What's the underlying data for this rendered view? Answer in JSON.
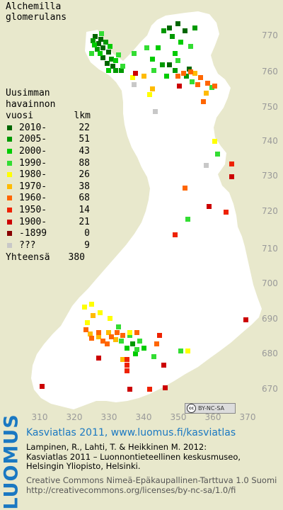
{
  "species": [
    "Alchemilla",
    "glomerulans"
  ],
  "legend": {
    "heading": [
      "Uusimman",
      "havainnon"
    ],
    "col_left": "vuosi",
    "col_right": "lkm",
    "items": [
      {
        "label": "2010-",
        "count": "22",
        "color": "#006600"
      },
      {
        "label": "2005-",
        "count": "51",
        "color": "#009900"
      },
      {
        "label": "2000-",
        "count": "43",
        "color": "#00cc00"
      },
      {
        "label": "1990-",
        "count": "88",
        "color": "#33dd33"
      },
      {
        "label": "1980-",
        "count": "26",
        "color": "#ffff00"
      },
      {
        "label": "1970-",
        "count": "38",
        "color": "#ffbb00"
      },
      {
        "label": "1960-",
        "count": "68",
        "color": "#ff6600"
      },
      {
        "label": "1950-",
        "count": "14",
        "color": "#ee2200"
      },
      {
        "label": "1900-",
        "count": "21",
        "color": "#cc0000"
      },
      {
        "label": "-1899",
        "count": "0",
        "color": "#880000"
      },
      {
        "label": "???",
        "count": "9",
        "color": "#c8c8c8"
      }
    ],
    "total_label": "Yhteensä",
    "total_count": "380"
  },
  "axes": {
    "x_ticks": [
      "310",
      "320",
      "330",
      "340",
      "350",
      "360",
      "370"
    ],
    "y_ticks": [
      "770",
      "760",
      "750",
      "740",
      "730",
      "720",
      "710",
      "700",
      "690",
      "680",
      "670"
    ]
  },
  "license_badge": {
    "symbol": "cc",
    "text": "BY-NC-SA"
  },
  "logo": "LUOMUS",
  "footer": {
    "site": "Kasviatlas 2011, www.luomus.fi/kasviatlas",
    "reference": [
      "Lampinen, R., Lahti, T. & Heikkinen M. 2012:",
      "Kasviatlas 2011 – Luonnontieteellinen keskusmuseo,",
      "Helsingin Yliopisto, Helsinki."
    ],
    "license": [
      "Creative Commons Nimeä-Epäkaupallinen-Tarttuva 1.0 Suomi",
      "http://creativecommons.org/licenses/by-nc-sa/1.0/fi"
    ]
  },
  "map_data": {
    "colors": {
      "land": "#ffffff",
      "background": "#e8e8cc",
      "ticks": "#9a9a9a"
    },
    "records": [
      [
        "#006600",
        131,
        48
      ],
      [
        "#006600",
        139,
        52
      ],
      [
        "#006600",
        136,
        58
      ],
      [
        "#006600",
        142,
        64
      ],
      [
        "#006600",
        150,
        70
      ],
      [
        "#006600",
        142,
        78
      ],
      [
        "#006600",
        148,
        86
      ],
      [
        "#006600",
        156,
        90
      ],
      [
        "#006600",
        248,
        30
      ],
      [
        "#006600",
        258,
        40
      ],
      [
        "#006600",
        236,
        36
      ],
      [
        "#006600",
        236,
        88
      ],
      [
        "#006600",
        264,
        94
      ],
      [
        "#009900",
        128,
        54
      ],
      [
        "#009900",
        134,
        66
      ],
      [
        "#009900",
        146,
        56
      ],
      [
        "#009900",
        154,
        80
      ],
      [
        "#009900",
        160,
        96
      ],
      [
        "#009900",
        240,
        48
      ],
      [
        "#009900",
        228,
        40
      ],
      [
        "#009900",
        226,
        88
      ],
      [
        "#009900",
        244,
        96
      ],
      [
        "#009900",
        272,
        36
      ],
      [
        "#009900",
        260,
        104
      ],
      [
        "#009900",
        168,
        96
      ],
      [
        "#009900",
        184,
        482
      ],
      [
        "#00cc00",
        130,
        60
      ],
      [
        "#00cc00",
        138,
        72
      ],
      [
        "#00cc00",
        152,
        62
      ],
      [
        "#00cc00",
        160,
        82
      ],
      [
        "#00cc00",
        150,
        96
      ],
      [
        "#00cc00",
        212,
        80
      ],
      [
        "#00cc00",
        220,
        64
      ],
      [
        "#00cc00",
        244,
        72
      ],
      [
        "#00cc00",
        252,
        56
      ],
      [
        "#00cc00",
        232,
        104
      ],
      [
        "#00cc00",
        176,
        488
      ],
      [
        "#00cc00",
        188,
        496
      ],
      [
        "#00cc00",
        200,
        488
      ],
      [
        "#33dd33",
        140,
        44
      ],
      [
        "#33dd33",
        126,
        72
      ],
      [
        "#33dd33",
        164,
        74
      ],
      [
        "#33dd33",
        170,
        90
      ],
      [
        "#33dd33",
        186,
        72
      ],
      [
        "#33dd33",
        204,
        64
      ],
      [
        "#33dd33",
        214,
        96
      ],
      [
        "#33dd33",
        248,
        82
      ],
      [
        "#33dd33",
        266,
        62
      ],
      [
        "#33dd33",
        268,
        112
      ],
      [
        "#33dd33",
        296,
        120
      ],
      [
        "#33dd33",
        304,
        214
      ],
      [
        "#33dd33",
        262,
        306
      ],
      [
        "#33dd33",
        168,
        478
      ],
      [
        "#33dd33",
        180,
        470
      ],
      [
        "#33dd33",
        190,
        490
      ],
      [
        "#33dd33",
        194,
        478
      ],
      [
        "#33dd33",
        164,
        458
      ],
      [
        "#33dd33",
        214,
        500
      ],
      [
        "#33dd33",
        252,
        492
      ],
      [
        "#ffff00",
        184,
        106
      ],
      [
        "#ffff00",
        208,
        130
      ],
      [
        "#ffff00",
        300,
        196
      ],
      [
        "#ffff00",
        116,
        430
      ],
      [
        "#ffff00",
        126,
        426
      ],
      [
        "#ffff00",
        138,
        438
      ],
      [
        "#ffff00",
        152,
        446
      ],
      [
        "#ffff00",
        120,
        452
      ],
      [
        "#ffff00",
        180,
        466
      ],
      [
        "#ffff00",
        262,
        492
      ],
      [
        "#ffbb00",
        200,
        104
      ],
      [
        "#ffbb00",
        212,
        122
      ],
      [
        "#ffbb00",
        272,
        100
      ],
      [
        "#ffbb00",
        288,
        128
      ],
      [
        "#ffbb00",
        124,
        468
      ],
      [
        "#ffbb00",
        136,
        472
      ],
      [
        "#ffbb00",
        150,
        466
      ],
      [
        "#ffbb00",
        160,
        476
      ],
      [
        "#ffbb00",
        170,
        504
      ],
      [
        "#ffbb00",
        128,
        442
      ],
      [
        "#ff6600",
        248,
        104
      ],
      [
        "#ff6600",
        256,
        100
      ],
      [
        "#ff6600",
        266,
        98
      ],
      [
        "#ff6600",
        280,
        106
      ],
      [
        "#ff6600",
        276,
        116
      ],
      [
        "#ff6600",
        290,
        114
      ],
      [
        "#ff6600",
        300,
        118
      ],
      [
        "#ff6600",
        284,
        140
      ],
      [
        "#ff6600",
        118,
        462
      ],
      [
        "#ff6600",
        126,
        474
      ],
      [
        "#ff6600",
        136,
        466
      ],
      [
        "#ff6600",
        142,
        478
      ],
      [
        "#ff6600",
        154,
        472
      ],
      [
        "#ff6600",
        162,
        466
      ],
      [
        "#ff6600",
        170,
        470
      ],
      [
        "#ff6600",
        148,
        482
      ],
      [
        "#ff6600",
        190,
        466
      ],
      [
        "#ff6600",
        218,
        482
      ],
      [
        "#ff6600",
        258,
        262
      ],
      [
        "#ee2200",
        176,
        504
      ],
      [
        "#ee2200",
        176,
        512
      ],
      [
        "#ee2200",
        176,
        520
      ],
      [
        "#ee2200",
        222,
        470
      ],
      [
        "#ee2200",
        208,
        546
      ],
      [
        "#ee2200",
        324,
        228
      ],
      [
        "#ee2200",
        316,
        296
      ],
      [
        "#ee2200",
        244,
        328
      ],
      [
        "#cc0000",
        188,
        100
      ],
      [
        "#cc0000",
        250,
        118
      ],
      [
        "#cc0000",
        324,
        246
      ],
      [
        "#cc0000",
        292,
        288
      ],
      [
        "#cc0000",
        230,
        544
      ],
      [
        "#cc0000",
        56,
        542
      ],
      [
        "#cc0000",
        136,
        502
      ],
      [
        "#cc0000",
        344,
        448
      ],
      [
        "#cc0000",
        228,
        512
      ],
      [
        "#cc0000",
        180,
        546
      ],
      [
        "#c8c8c8",
        288,
        230
      ],
      [
        "#c8c8c8",
        186,
        116
      ],
      [
        "#c8c8c8",
        216,
        154
      ]
    ]
  }
}
